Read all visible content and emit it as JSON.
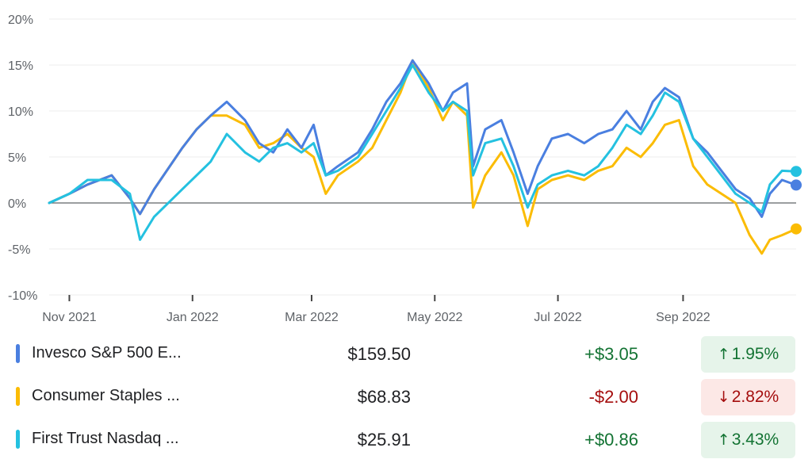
{
  "chart_data": {
    "type": "line",
    "title": "",
    "xlabel": "",
    "ylabel": "",
    "ylim": [
      -10,
      20
    ],
    "xlim": [
      "2021-10-22",
      "2022-10-27"
    ],
    "y_ticks": [
      20,
      15,
      10,
      5,
      0,
      -5,
      -10
    ],
    "y_tick_labels": [
      "20%",
      "15%",
      "10%",
      "5%",
      "0%",
      "-5%",
      "-10%"
    ],
    "x_ticks": [
      "2021-11-01",
      "2022-01-01",
      "2022-03-01",
      "2022-05-01",
      "2022-07-01",
      "2022-09-01"
    ],
    "x_tick_labels": [
      "Nov 2021",
      "Jan 2022",
      "Mar 2022",
      "May 2022",
      "Jul 2022",
      "Sep 2022"
    ],
    "grid": true,
    "series": [
      {
        "name": "Invesco S&P 500 E...",
        "color": "#4a7fe0",
        "points": [
          [
            "2021-10-22",
            0
          ],
          [
            "2021-11-01",
            1.0
          ],
          [
            "2021-11-10",
            2.0
          ],
          [
            "2021-11-22",
            3.0
          ],
          [
            "2021-12-01",
            0.5
          ],
          [
            "2021-12-06",
            -1.2
          ],
          [
            "2021-12-13",
            1.5
          ],
          [
            "2021-12-27",
            6.0
          ],
          [
            "2022-01-03",
            8.0
          ],
          [
            "2022-01-10",
            9.5
          ],
          [
            "2022-01-18",
            11.0
          ],
          [
            "2022-01-27",
            9.0
          ],
          [
            "2022-02-03",
            6.5
          ],
          [
            "2022-02-10",
            5.5
          ],
          [
            "2022-02-17",
            8.0
          ],
          [
            "2022-02-24",
            6.0
          ],
          [
            "2022-03-02",
            8.5
          ],
          [
            "2022-03-08",
            3.0
          ],
          [
            "2022-03-14",
            4.0
          ],
          [
            "2022-03-24",
            5.5
          ],
          [
            "2022-03-31",
            8.0
          ],
          [
            "2022-04-07",
            11.0
          ],
          [
            "2022-04-14",
            13.0
          ],
          [
            "2022-04-20",
            15.5
          ],
          [
            "2022-04-28",
            13.0
          ],
          [
            "2022-05-05",
            10.0
          ],
          [
            "2022-05-10",
            12.0
          ],
          [
            "2022-05-17",
            13.0
          ],
          [
            "2022-05-20",
            4.0
          ],
          [
            "2022-05-26",
            8.0
          ],
          [
            "2022-06-03",
            9.0
          ],
          [
            "2022-06-09",
            5.5
          ],
          [
            "2022-06-16",
            1.0
          ],
          [
            "2022-06-21",
            4.0
          ],
          [
            "2022-06-28",
            7.0
          ],
          [
            "2022-07-06",
            7.5
          ],
          [
            "2022-07-14",
            6.5
          ],
          [
            "2022-07-21",
            7.5
          ],
          [
            "2022-07-28",
            8.0
          ],
          [
            "2022-08-04",
            10.0
          ],
          [
            "2022-08-11",
            8.0
          ],
          [
            "2022-08-17",
            11.0
          ],
          [
            "2022-08-23",
            12.5
          ],
          [
            "2022-08-30",
            11.5
          ],
          [
            "2022-09-06",
            7.0
          ],
          [
            "2022-09-13",
            5.5
          ],
          [
            "2022-09-20",
            3.5
          ],
          [
            "2022-09-27",
            1.5
          ],
          [
            "2022-10-04",
            0.5
          ],
          [
            "2022-10-10",
            -1.5
          ],
          [
            "2022-10-14",
            1.0
          ],
          [
            "2022-10-20",
            2.5
          ],
          [
            "2022-10-27",
            1.95
          ]
        ]
      },
      {
        "name": "Consumer Staples ...",
        "color": "#fbbc04",
        "points": [
          [
            "2021-10-22",
            0
          ],
          [
            "2021-11-01",
            1.0
          ],
          [
            "2021-11-10",
            2.0
          ],
          [
            "2021-11-22",
            3.0
          ],
          [
            "2021-12-01",
            0.5
          ],
          [
            "2021-12-06",
            -1.2
          ],
          [
            "2021-12-13",
            1.5
          ],
          [
            "2021-12-27",
            6.0
          ],
          [
            "2022-01-03",
            8.0
          ],
          [
            "2022-01-10",
            9.5
          ],
          [
            "2022-01-18",
            9.5
          ],
          [
            "2022-01-27",
            8.5
          ],
          [
            "2022-02-03",
            6.0
          ],
          [
            "2022-02-10",
            6.5
          ],
          [
            "2022-02-17",
            7.5
          ],
          [
            "2022-02-24",
            6.0
          ],
          [
            "2022-03-02",
            5.0
          ],
          [
            "2022-03-08",
            1.0
          ],
          [
            "2022-03-14",
            3.0
          ],
          [
            "2022-03-24",
            4.5
          ],
          [
            "2022-03-31",
            6.0
          ],
          [
            "2022-04-07",
            9.0
          ],
          [
            "2022-04-14",
            12.0
          ],
          [
            "2022-04-20",
            15.5
          ],
          [
            "2022-04-28",
            12.5
          ],
          [
            "2022-05-05",
            9.0
          ],
          [
            "2022-05-10",
            11.0
          ],
          [
            "2022-05-17",
            9.5
          ],
          [
            "2022-05-20",
            -0.5
          ],
          [
            "2022-05-26",
            3.0
          ],
          [
            "2022-06-03",
            5.5
          ],
          [
            "2022-06-09",
            3.0
          ],
          [
            "2022-06-16",
            -2.5
          ],
          [
            "2022-06-21",
            1.5
          ],
          [
            "2022-06-28",
            2.5
          ],
          [
            "2022-07-06",
            3.0
          ],
          [
            "2022-07-14",
            2.5
          ],
          [
            "2022-07-21",
            3.5
          ],
          [
            "2022-07-28",
            4.0
          ],
          [
            "2022-08-04",
            6.0
          ],
          [
            "2022-08-11",
            5.0
          ],
          [
            "2022-08-17",
            6.5
          ],
          [
            "2022-08-23",
            8.5
          ],
          [
            "2022-08-30",
            9.0
          ],
          [
            "2022-09-06",
            4.0
          ],
          [
            "2022-09-13",
            2.0
          ],
          [
            "2022-09-20",
            1.0
          ],
          [
            "2022-09-27",
            0
          ],
          [
            "2022-10-04",
            -3.5
          ],
          [
            "2022-10-10",
            -5.5
          ],
          [
            "2022-10-14",
            -4.0
          ],
          [
            "2022-10-20",
            -3.5
          ],
          [
            "2022-10-27",
            -2.82
          ]
        ]
      },
      {
        "name": "First Trust Nasdaq ...",
        "color": "#24c1e0",
        "points": [
          [
            "2021-10-22",
            0
          ],
          [
            "2021-11-01",
            1.0
          ],
          [
            "2021-11-10",
            2.5
          ],
          [
            "2021-11-22",
            2.5
          ],
          [
            "2021-12-01",
            1.0
          ],
          [
            "2021-12-06",
            -4.0
          ],
          [
            "2021-12-13",
            -1.5
          ],
          [
            "2021-12-27",
            1.5
          ],
          [
            "2022-01-03",
            3.0
          ],
          [
            "2022-01-10",
            4.5
          ],
          [
            "2022-01-18",
            7.5
          ],
          [
            "2022-01-27",
            5.5
          ],
          [
            "2022-02-03",
            4.5
          ],
          [
            "2022-02-10",
            6.0
          ],
          [
            "2022-02-17",
            6.5
          ],
          [
            "2022-02-24",
            5.5
          ],
          [
            "2022-03-02",
            6.5
          ],
          [
            "2022-03-08",
            3.0
          ],
          [
            "2022-03-14",
            3.5
          ],
          [
            "2022-03-24",
            5.0
          ],
          [
            "2022-03-31",
            7.5
          ],
          [
            "2022-04-07",
            10.0
          ],
          [
            "2022-04-14",
            12.5
          ],
          [
            "2022-04-20",
            15.0
          ],
          [
            "2022-04-28",
            12.0
          ],
          [
            "2022-05-05",
            10.0
          ],
          [
            "2022-05-10",
            11.0
          ],
          [
            "2022-05-17",
            10.0
          ],
          [
            "2022-05-20",
            3.0
          ],
          [
            "2022-05-26",
            6.5
          ],
          [
            "2022-06-03",
            7.0
          ],
          [
            "2022-06-09",
            4.0
          ],
          [
            "2022-06-16",
            -0.5
          ],
          [
            "2022-06-21",
            2.0
          ],
          [
            "2022-06-28",
            3.0
          ],
          [
            "2022-07-06",
            3.5
          ],
          [
            "2022-07-14",
            3.0
          ],
          [
            "2022-07-21",
            4.0
          ],
          [
            "2022-07-28",
            6.0
          ],
          [
            "2022-08-04",
            8.5
          ],
          [
            "2022-08-11",
            7.5
          ],
          [
            "2022-08-17",
            9.5
          ],
          [
            "2022-08-23",
            12.0
          ],
          [
            "2022-08-30",
            11.0
          ],
          [
            "2022-09-06",
            7.0
          ],
          [
            "2022-09-13",
            5.0
          ],
          [
            "2022-09-20",
            3.0
          ],
          [
            "2022-09-27",
            1.0
          ],
          [
            "2022-10-04",
            0
          ],
          [
            "2022-10-10",
            -1.0
          ],
          [
            "2022-10-14",
            2.0
          ],
          [
            "2022-10-20",
            3.5
          ],
          [
            "2022-10-27",
            3.43
          ]
        ]
      }
    ]
  },
  "legend": [
    {
      "name": "Invesco S&P 500 E...",
      "color": "#4a7fe0",
      "price": "$159.50",
      "change": "+$3.05",
      "percent": "1.95%",
      "direction": "up",
      "arrow": "↑"
    },
    {
      "name": "Consumer Staples ...",
      "color": "#fbbc04",
      "price": "$68.83",
      "change": "-$2.00",
      "percent": "2.82%",
      "direction": "down",
      "arrow": "↓"
    },
    {
      "name": "First Trust Nasdaq ...",
      "color": "#24c1e0",
      "price": "$25.91",
      "change": "+$0.86",
      "percent": "3.43%",
      "direction": "up",
      "arrow": "↑"
    }
  ]
}
